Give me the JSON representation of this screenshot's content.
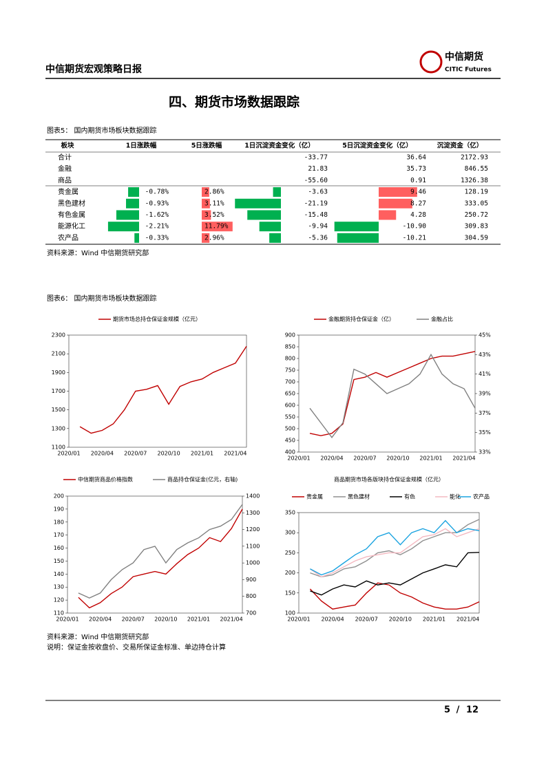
{
  "header": {
    "title": "中信期货宏观策略日报",
    "logo_cn": "中信期货",
    "logo_en": "CITIC Futures"
  },
  "section_title": "四、期货市场数据跟踪",
  "figure5": {
    "title": "图表5： 国内期货市场板块数据跟踪",
    "columns": [
      "板块",
      "1日涨跌幅",
      "5日涨跌幅",
      "1日沉淀资金变化（亿）",
      "5日沉淀资金变化（亿）",
      "沉淀资金（亿）"
    ],
    "rows": [
      {
        "sector": "合计",
        "flow_1d": {
          "value": -33.77,
          "label": "-33.77"
        },
        "flow_5d": {
          "value": 36.64,
          "label": "36.64"
        },
        "oi": {
          "value": 2172.93,
          "label": "2172.93"
        }
      },
      {
        "sector": "金融",
        "flow_1d": {
          "value": 21.83,
          "label": "21.83"
        },
        "flow_5d": {
          "value": 35.73,
          "label": "35.73"
        },
        "oi": {
          "value": 846.55,
          "label": "846.55"
        }
      },
      {
        "sector": "商品",
        "flow_1d": {
          "value": -55.6,
          "label": "-55.60"
        },
        "flow_5d": {
          "value": 0.91,
          "label": "0.91"
        },
        "oi": {
          "value": 1326.38,
          "label": "1326.38"
        }
      },
      {
        "sector": "贵金属",
        "chg_1d": {
          "value": -0.78,
          "label": "-0.78%"
        },
        "chg_5d": {
          "value": 2.86,
          "label": "2.86%"
        },
        "flow_1d": {
          "value": -3.63,
          "label": "-3.63"
        },
        "flow_5d": {
          "value": 9.46,
          "label": "9.46"
        },
        "oi": {
          "value": 128.19,
          "label": "128.19"
        }
      },
      {
        "sector": "黑色建材",
        "chg_1d": {
          "value": -0.93,
          "label": "-0.93%"
        },
        "chg_5d": {
          "value": 3.11,
          "label": "3.11%"
        },
        "flow_1d": {
          "value": -21.19,
          "label": "-21.19"
        },
        "flow_5d": {
          "value": 8.27,
          "label": "8.27"
        },
        "oi": {
          "value": 333.05,
          "label": "333.05"
        }
      },
      {
        "sector": "有色金属",
        "chg_1d": {
          "value": -1.62,
          "label": "-1.62%"
        },
        "chg_5d": {
          "value": 3.52,
          "label": "3.52%"
        },
        "flow_1d": {
          "value": -15.48,
          "label": "-15.48"
        },
        "flow_5d": {
          "value": 4.28,
          "label": "4.28"
        },
        "oi": {
          "value": 250.72,
          "label": "250.72"
        }
      },
      {
        "sector": "能源化工",
        "chg_1d": {
          "value": -2.21,
          "label": "-2.21%"
        },
        "chg_5d": {
          "value": 11.79,
          "label": "11.79%"
        },
        "flow_1d": {
          "value": -9.94,
          "label": "-9.94"
        },
        "flow_5d": {
          "value": -10.9,
          "label": "-10.90"
        },
        "oi": {
          "value": 309.83,
          "label": "309.83"
        }
      },
      {
        "sector": "农产品",
        "chg_1d": {
          "value": -0.33,
          "label": "-0.33%"
        },
        "chg_5d": {
          "value": 2.96,
          "label": "2.96%"
        },
        "flow_1d": {
          "value": -5.36,
          "label": "-5.36"
        },
        "flow_5d": {
          "value": -10.21,
          "label": "-10.21"
        },
        "oi": {
          "value": 304.59,
          "label": "304.59"
        }
      }
    ],
    "source": "资料来源：Wind 中信期货研究部"
  },
  "figure6": {
    "title": "图表6： 国内期货市场板块数据跟踪",
    "source": "资料来源：Wind 中信期货研究部",
    "note": "说明：保证金按收盘价、交易所保证金标准、单边持仓计算"
  },
  "chart_data": [
    {
      "type": "line",
      "categories": [
        "2020/01",
        null,
        null,
        "2020/04",
        null,
        null,
        "2020/07",
        null,
        null,
        "2020/10",
        null,
        null,
        "2021/01",
        null,
        null,
        "2021/04",
        null
      ],
      "ylim": [
        1100,
        2300
      ],
      "yticks": [
        1100,
        1300,
        1500,
        1700,
        1900,
        2100,
        2300
      ],
      "series": [
        {
          "name": "期货市场总持仓保证金规模（亿元）",
          "color": "#c00000",
          "values": [
            null,
            1320,
            1250,
            1280,
            1350,
            1500,
            1700,
            1720,
            1760,
            1560,
            1750,
            1800,
            1830,
            1900,
            1950,
            2000,
            2180
          ]
        }
      ]
    },
    {
      "type": "line",
      "categories": [
        "2020/01",
        null,
        null,
        "2020/04",
        null,
        null,
        "2020/07",
        null,
        null,
        "2020/10",
        null,
        null,
        "2021/01",
        null,
        null,
        "2021/04",
        null
      ],
      "ylim": [
        400,
        900
      ],
      "yticks": [
        400,
        450,
        500,
        550,
        600,
        650,
        700,
        750,
        800,
        850,
        900
      ],
      "y2lim": [
        33,
        45
      ],
      "y2ticks": [
        {
          "value": 33,
          "label": "33%"
        },
        {
          "value": 35,
          "label": "35%"
        },
        {
          "value": 37,
          "label": "37%"
        },
        {
          "value": 39,
          "label": "39%"
        },
        {
          "value": 41,
          "label": "41%"
        },
        {
          "value": 43,
          "label": "43%"
        },
        {
          "value": 45,
          "label": "45%"
        }
      ],
      "series": [
        {
          "name": "金融期货持仓保证金（亿）",
          "color": "#c00000",
          "values": [
            null,
            480,
            470,
            480,
            520,
            710,
            720,
            740,
            720,
            740,
            760,
            780,
            800,
            810,
            810,
            820,
            830
          ]
        },
        {
          "name": "金融占比",
          "color": "#808080",
          "axis": "y2",
          "values": [
            null,
            37.5,
            36,
            34.5,
            36,
            41.5,
            41,
            40,
            39,
            39.5,
            40,
            41,
            43,
            41,
            40,
            39.5,
            37.5
          ]
        }
      ]
    },
    {
      "type": "line",
      "categories": [
        "2020/01",
        null,
        null,
        "2020/04",
        null,
        null,
        "2020/07",
        null,
        null,
        "2020/10",
        null,
        null,
        "2021/01",
        null,
        null,
        "2021/04",
        null
      ],
      "ylim": [
        110,
        200
      ],
      "yticks": [
        110,
        120,
        130,
        140,
        150,
        160,
        170,
        180,
        190,
        200
      ],
      "y2lim": [
        700,
        1400
      ],
      "y2ticks": [
        700,
        800,
        900,
        1000,
        1100,
        1200,
        1300,
        1400
      ],
      "series": [
        {
          "name": "中信期货商品价格指数",
          "color": "#c00000",
          "values": [
            null,
            122,
            114,
            118,
            125,
            130,
            138,
            140,
            142,
            140,
            148,
            155,
            160,
            168,
            165,
            175,
            190
          ]
        },
        {
          "name": "商品持仓保证金(亿元，右轴)",
          "color": "#808080",
          "axis": "y2",
          "values": [
            null,
            820,
            790,
            820,
            900,
            960,
            1000,
            1080,
            1100,
            1000,
            1080,
            1120,
            1150,
            1200,
            1220,
            1260,
            1350
          ]
        }
      ]
    },
    {
      "type": "line",
      "title": "商品期货市场各版块持仓保证金规模（亿元）",
      "categories": [
        "2020/01",
        null,
        null,
        "2020/04",
        null,
        null,
        "2020/07",
        null,
        null,
        "2020/10",
        null,
        null,
        "2021/01",
        null,
        null,
        "2021/04",
        null
      ],
      "ylim": [
        100,
        350
      ],
      "yticks": [
        100,
        150,
        200,
        250,
        300,
        350
      ],
      "series": [
        {
          "name": "贵金属",
          "color": "#c00000",
          "values": [
            null,
            160,
            130,
            110,
            115,
            120,
            150,
            175,
            170,
            150,
            140,
            125,
            115,
            110,
            110,
            115,
            128
          ]
        },
        {
          "name": "黑色建材",
          "color": "#909090",
          "values": [
            null,
            200,
            190,
            195,
            210,
            215,
            230,
            250,
            255,
            245,
            260,
            280,
            290,
            300,
            300,
            320,
            333
          ]
        },
        {
          "name": "有色",
          "color": "#000000",
          "values": [
            null,
            155,
            145,
            160,
            170,
            165,
            180,
            170,
            175,
            170,
            185,
            200,
            210,
            220,
            215,
            250,
            251
          ]
        },
        {
          "name": "能化",
          "color": "#f4b8c0",
          "values": [
            null,
            210,
            190,
            200,
            215,
            230,
            240,
            245,
            250,
            250,
            270,
            290,
            295,
            310,
            290,
            300,
            310
          ]
        },
        {
          "name": "农产品",
          "color": "#1aa3e0",
          "values": [
            null,
            210,
            195,
            205,
            225,
            245,
            260,
            290,
            300,
            270,
            300,
            310,
            300,
            330,
            300,
            310,
            305
          ]
        }
      ]
    }
  ],
  "footer": {
    "page": 5,
    "total": 12
  }
}
